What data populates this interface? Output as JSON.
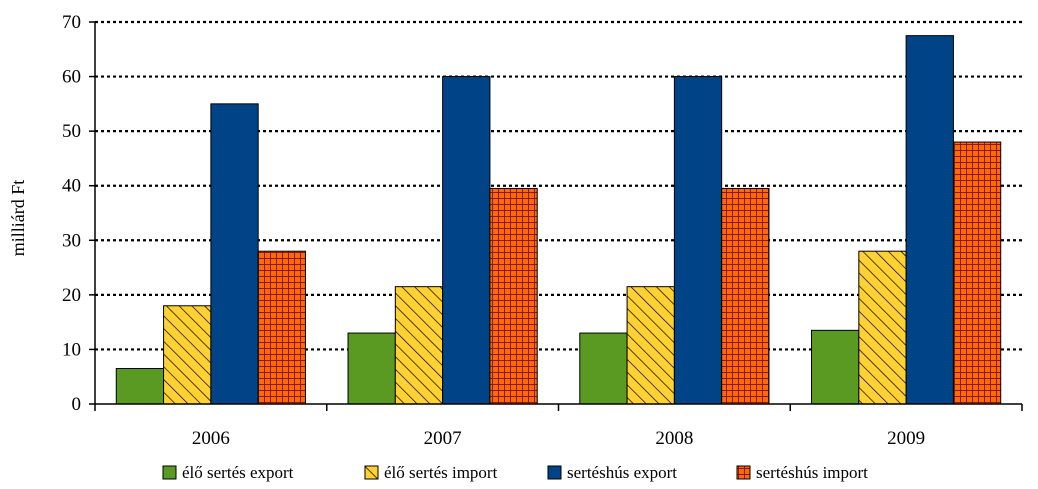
{
  "chart_data": {
    "type": "bar",
    "title": "",
    "xlabel": "",
    "ylabel": "milliárd Ft",
    "ylim": [
      0,
      70
    ],
    "yticks": [
      0,
      10,
      20,
      30,
      40,
      50,
      60,
      70
    ],
    "grid": true,
    "legend_position": "bottom",
    "categories": [
      "2006",
      "2007",
      "2008",
      "2009"
    ],
    "series": [
      {
        "name": "élő sertés export",
        "values": [
          6.5,
          13,
          13,
          13.5
        ],
        "color": "#5a9a23",
        "pattern": "solid"
      },
      {
        "name": "élő sertés import",
        "values": [
          18,
          21.5,
          21.5,
          28
        ],
        "color": "#ffd133",
        "pattern": "diagonal"
      },
      {
        "name": "sertéshús export",
        "values": [
          55,
          60,
          60,
          67.5
        ],
        "color": "#004387",
        "pattern": "solid"
      },
      {
        "name": "sertéshús import",
        "values": [
          28,
          39.5,
          39.5,
          48
        ],
        "color": "#ff6a00",
        "pattern": "grid"
      }
    ]
  }
}
